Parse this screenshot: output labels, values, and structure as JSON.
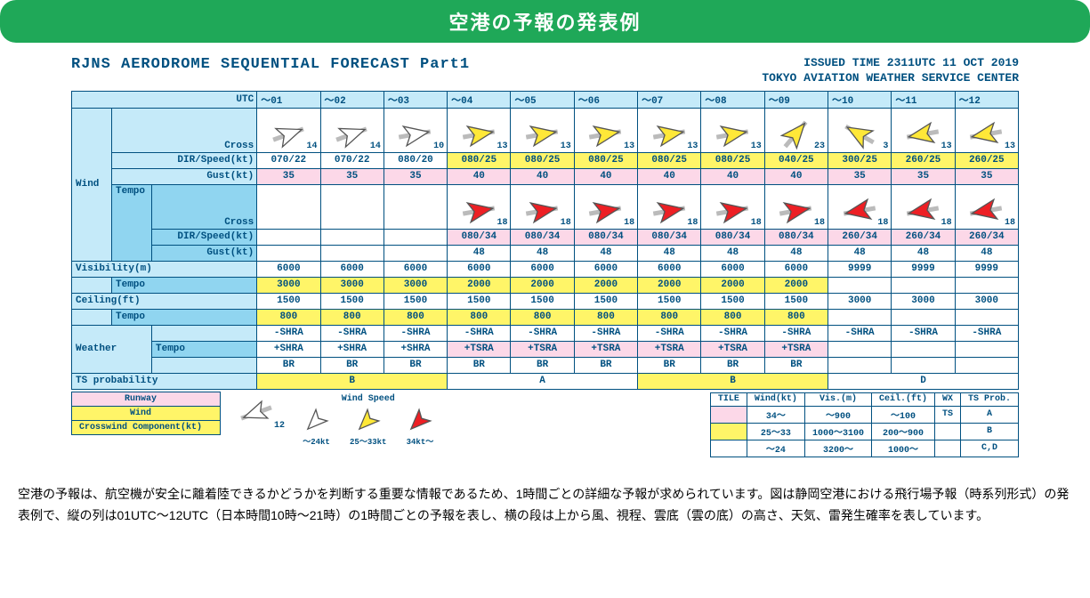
{
  "header": "空港の予報の発表例",
  "title1": "RJNS  AERODROME SEQUENTIAL FORECAST Part1",
  "title2a": "ISSUED TIME 2311UTC 11 OCT 2019",
  "title2b": "TOKYO AVIATION WEATHER SERVICE CENTER",
  "utc": "UTC",
  "cols": [
    "〜01",
    "〜02",
    "〜03",
    "〜04",
    "〜05",
    "〜06",
    "〜07",
    "〜08",
    "〜09",
    "〜10",
    "〜11",
    "〜12"
  ],
  "rows": {
    "wind": "Wind",
    "cross": "Cross",
    "dirspd": "DIR/Speed(kt)",
    "gust": "Gust(kt)",
    "tempo": "Tempo",
    "vis": "Visibility(m)",
    "ceil": "Ceiling(ft)",
    "wx": "Weather",
    "tsp": "TS probability"
  },
  "windArrows": [
    {
      "dir": 70,
      "col": "w",
      "n": "14"
    },
    {
      "dir": 70,
      "col": "w",
      "n": "14"
    },
    {
      "dir": 80,
      "col": "w",
      "n": "10"
    },
    {
      "dir": 80,
      "col": "y",
      "n": "13"
    },
    {
      "dir": 80,
      "col": "y",
      "n": "13"
    },
    {
      "dir": 80,
      "col": "y",
      "n": "13"
    },
    {
      "dir": 80,
      "col": "y",
      "n": "13"
    },
    {
      "dir": 80,
      "col": "y",
      "n": "13"
    },
    {
      "dir": 40,
      "col": "y",
      "n": "23"
    },
    {
      "dir": 300,
      "col": "y",
      "n": "3"
    },
    {
      "dir": 260,
      "col": "y",
      "n": "13"
    },
    {
      "dir": 260,
      "col": "y",
      "n": "13"
    }
  ],
  "dirSpd": [
    "070/22",
    "070/22",
    "080/20",
    "080/25",
    "080/25",
    "080/25",
    "080/25",
    "080/25",
    "040/25",
    "300/25",
    "260/25",
    "260/25"
  ],
  "dirSpdHl": [
    0,
    0,
    0,
    1,
    1,
    1,
    1,
    1,
    1,
    1,
    1,
    1
  ],
  "gust": [
    "35",
    "35",
    "35",
    "40",
    "40",
    "40",
    "40",
    "40",
    "40",
    "35",
    "35",
    "35"
  ],
  "tempoArrows": [
    null,
    null,
    null,
    {
      "dir": 80,
      "col": "r",
      "n": "18"
    },
    {
      "dir": 80,
      "col": "r",
      "n": "18"
    },
    {
      "dir": 80,
      "col": "r",
      "n": "18"
    },
    {
      "dir": 80,
      "col": "r",
      "n": "18"
    },
    {
      "dir": 80,
      "col": "r",
      "n": "18"
    },
    {
      "dir": 80,
      "col": "r",
      "n": "18"
    },
    {
      "dir": 260,
      "col": "r",
      "n": "18"
    },
    {
      "dir": 260,
      "col": "r",
      "n": "18"
    },
    {
      "dir": 260,
      "col": "r",
      "n": "18"
    }
  ],
  "tDirSpd": [
    "",
    "",
    "",
    "080/34",
    "080/34",
    "080/34",
    "080/34",
    "080/34",
    "080/34",
    "260/34",
    "260/34",
    "260/34"
  ],
  "tGust": [
    "",
    "",
    "",
    "48",
    "48",
    "48",
    "48",
    "48",
    "48",
    "48",
    "48",
    "48"
  ],
  "vis": [
    "6000",
    "6000",
    "6000",
    "6000",
    "6000",
    "6000",
    "6000",
    "6000",
    "6000",
    "9999",
    "9999",
    "9999"
  ],
  "visT": [
    "3000",
    "3000",
    "3000",
    "2000",
    "2000",
    "2000",
    "2000",
    "2000",
    "2000",
    "",
    "",
    ""
  ],
  "visThl": [
    1,
    1,
    1,
    1,
    1,
    1,
    1,
    1,
    1,
    0,
    0,
    0
  ],
  "ceil": [
    "1500",
    "1500",
    "1500",
    "1500",
    "1500",
    "1500",
    "1500",
    "1500",
    "1500",
    "3000",
    "3000",
    "3000"
  ],
  "ceilT": [
    "800",
    "800",
    "800",
    "800",
    "800",
    "800",
    "800",
    "800",
    "800",
    "",
    "",
    ""
  ],
  "ceilThl": [
    1,
    1,
    1,
    1,
    1,
    1,
    1,
    1,
    1,
    0,
    0,
    0
  ],
  "wx1": [
    "-SHRA",
    "-SHRA",
    "-SHRA",
    "-SHRA",
    "-SHRA",
    "-SHRA",
    "-SHRA",
    "-SHRA",
    "-SHRA",
    "-SHRA",
    "-SHRA",
    "-SHRA"
  ],
  "wxT": [
    "+SHRA",
    "+SHRA",
    "+SHRA",
    "+TSRA",
    "+TSRA",
    "+TSRA",
    "+TSRA",
    "+TSRA",
    "+TSRA",
    "",
    "",
    ""
  ],
  "wxThl": [
    0,
    0,
    0,
    1,
    1,
    1,
    1,
    1,
    1,
    0,
    0,
    0
  ],
  "wx2": [
    "BR",
    "BR",
    "BR",
    "BR",
    "BR",
    "BR",
    "BR",
    "BR",
    "BR",
    "",
    "",
    ""
  ],
  "ts": [
    {
      "span": 3,
      "v": "B"
    },
    {
      "span": 3,
      "v": "A"
    },
    {
      "span": 3,
      "v": "B"
    },
    {
      "span": 3,
      "v": "D"
    }
  ],
  "tsHl": [
    1,
    0,
    1,
    0
  ],
  "legend": {
    "runway": "Runway",
    "wind": "Wind",
    "cwc": "Crosswind Component(kt)",
    "ws": "Wind Speed",
    "s1": "〜24kt",
    "s2": "25〜33kt",
    "s3": "34kt〜",
    "tile": "TILE",
    "wkt": "Wind(kt)",
    "vism": "Vis.(m)",
    "ceilft": "Ceil.(ft)",
    "wx": "WX",
    "tsp": "TS Prob.",
    "r1": [
      "34〜",
      "〜900",
      "〜100",
      "TS",
      "A"
    ],
    "r2": [
      "25〜33",
      "1000〜3100",
      "200〜900",
      "",
      "B"
    ],
    "r3": [
      "〜24",
      "3200〜",
      "1000〜",
      "",
      "C,D"
    ],
    "n12": "12"
  },
  "desc": "空港の予報は、航空機が安全に離着陸できるかどうかを判断する重要な情報であるため、1時間ごとの詳細な予報が求められています。図は静岡空港における飛行場予報（時系列形式）の発表例で、縦の列は01UTC〜12UTC（日本時間10時〜21時）の1時間ごとの予報を表し、横の段は上から風、視程、雲底（雲の底）の高さ、天気、雷発生確率を表しています。",
  "colors": {
    "white": "#ffffff",
    "yellow": "#ffe838",
    "red": "#ed1f24",
    "stroke": "#555555"
  }
}
